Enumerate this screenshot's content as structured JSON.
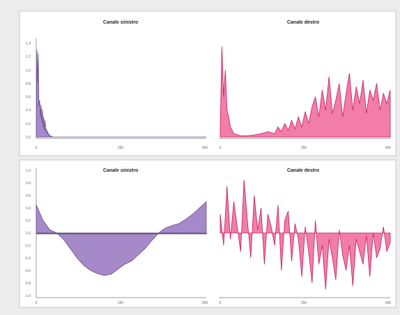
{
  "colors": {
    "purple_fill": "#9c7cc2",
    "purple_dark": "#6a4a8e",
    "pink_fill": "#ef6f9f",
    "pink_dark": "#c9185c"
  },
  "chart_data": [
    {
      "type": "area",
      "title": "Canale sinistro",
      "xlim": [
        0,
        500
      ],
      "x_ticks": [
        "0",
        "250",
        "500"
      ],
      "ylim": [
        0,
        1.4
      ],
      "y_ticks": [
        "0.0",
        "0.2",
        "0.4",
        "0.6",
        "0.8",
        "1.0",
        "1.2",
        "1.4"
      ],
      "series": [
        {
          "x": [
            0,
            2,
            4,
            6,
            8,
            10,
            12,
            14,
            16,
            18,
            20,
            22,
            24,
            26,
            28,
            30,
            32,
            34,
            36,
            38,
            40,
            45,
            50,
            500
          ],
          "values": [
            0.05,
            1.3,
            0.8,
            1.25,
            0.45,
            0.55,
            0.3,
            0.48,
            0.22,
            0.42,
            0.15,
            0.3,
            0.1,
            0.25,
            0.08,
            0.12,
            0.05,
            0.08,
            0.03,
            0.04,
            0.02,
            0.01,
            0.0,
            0.0
          ]
        }
      ]
    },
    {
      "type": "area",
      "title": "Canale destro",
      "xlim": [
        0,
        500
      ],
      "x_ticks": [
        "0",
        "250",
        "500"
      ],
      "ylim": [
        0,
        1.4
      ],
      "series": [
        {
          "x": [
            0,
            5,
            10,
            15,
            20,
            25,
            30,
            40,
            60,
            80,
            100,
            120,
            140,
            160,
            170,
            180,
            190,
            200,
            210,
            220,
            230,
            240,
            250,
            260,
            270,
            280,
            290,
            300,
            310,
            320,
            330,
            340,
            350,
            360,
            370,
            380,
            390,
            400,
            410,
            420,
            430,
            440,
            450,
            460,
            470,
            480,
            490,
            500
          ],
          "values": [
            0.1,
            1.35,
            0.6,
            1.0,
            0.4,
            0.3,
            0.15,
            0.05,
            0.02,
            0.02,
            0.03,
            0.05,
            0.08,
            0.05,
            0.15,
            0.08,
            0.2,
            0.1,
            0.25,
            0.12,
            0.3,
            0.15,
            0.38,
            0.2,
            0.45,
            0.6,
            0.3,
            0.7,
            0.4,
            0.9,
            0.35,
            0.55,
            0.8,
            0.3,
            0.65,
            0.95,
            0.4,
            0.75,
            0.5,
            0.85,
            0.35,
            0.7,
            0.55,
            0.8,
            0.4,
            0.65,
            0.5,
            0.7
          ]
        }
      ]
    },
    {
      "type": "area",
      "title": "Canale sinistro",
      "xlim": [
        0,
        500
      ],
      "x_ticks": [
        "0",
        "250",
        "500"
      ],
      "ylim": [
        -1.0,
        1.0
      ],
      "y_ticks": [
        "-1.0",
        "-0.8",
        "-0.6",
        "-0.4",
        "-0.2",
        "0.0",
        "0.2",
        "0.4",
        "0.6",
        "0.8",
        "1.0"
      ],
      "series": [
        {
          "x": [
            0,
            20,
            40,
            60,
            80,
            100,
            120,
            140,
            160,
            180,
            200,
            220,
            240,
            260,
            280,
            300,
            320,
            340,
            360,
            380,
            400,
            420,
            440,
            460,
            480,
            500
          ],
          "values": [
            0.45,
            0.2,
            0.05,
            0.0,
            -0.1,
            -0.25,
            -0.4,
            -0.52,
            -0.6,
            -0.65,
            -0.68,
            -0.66,
            -0.58,
            -0.5,
            -0.45,
            -0.35,
            -0.25,
            -0.12,
            0.0,
            0.08,
            0.12,
            0.15,
            0.22,
            0.3,
            0.4,
            0.5
          ]
        }
      ]
    },
    {
      "type": "area",
      "title": "Canale destro",
      "xlim": [
        0,
        500
      ],
      "x_ticks": [
        "0",
        "250",
        "500"
      ],
      "ylim": [
        -1.0,
        1.0
      ],
      "series": [
        {
          "x": [
            0,
            10,
            20,
            30,
            40,
            50,
            60,
            70,
            80,
            90,
            100,
            110,
            120,
            130,
            140,
            150,
            160,
            170,
            180,
            190,
            200,
            210,
            220,
            230,
            240,
            250,
            260,
            270,
            280,
            290,
            300,
            310,
            320,
            330,
            340,
            350,
            360,
            370,
            380,
            390,
            400,
            410,
            420,
            430,
            440,
            450,
            460,
            470,
            480,
            490,
            500
          ],
          "values": [
            0.3,
            -0.2,
            0.75,
            -0.1,
            0.5,
            0.1,
            -0.3,
            0.85,
            0.2,
            -0.4,
            0.6,
            0.05,
            0.4,
            -0.5,
            0.3,
            0.1,
            -0.2,
            0.45,
            -0.6,
            0.2,
            0.35,
            -0.45,
            0.15,
            -0.1,
            -0.7,
            0.1,
            -0.3,
            -0.8,
            0.2,
            -0.5,
            -0.2,
            -0.9,
            -0.1,
            -0.4,
            -0.75,
            0.05,
            -0.35,
            -0.6,
            -0.2,
            -0.85,
            -0.1,
            -0.3,
            -0.5,
            -0.05,
            -0.7,
            0.0,
            -0.4,
            -0.25,
            0.1,
            -0.3,
            -0.15
          ]
        }
      ]
    }
  ]
}
